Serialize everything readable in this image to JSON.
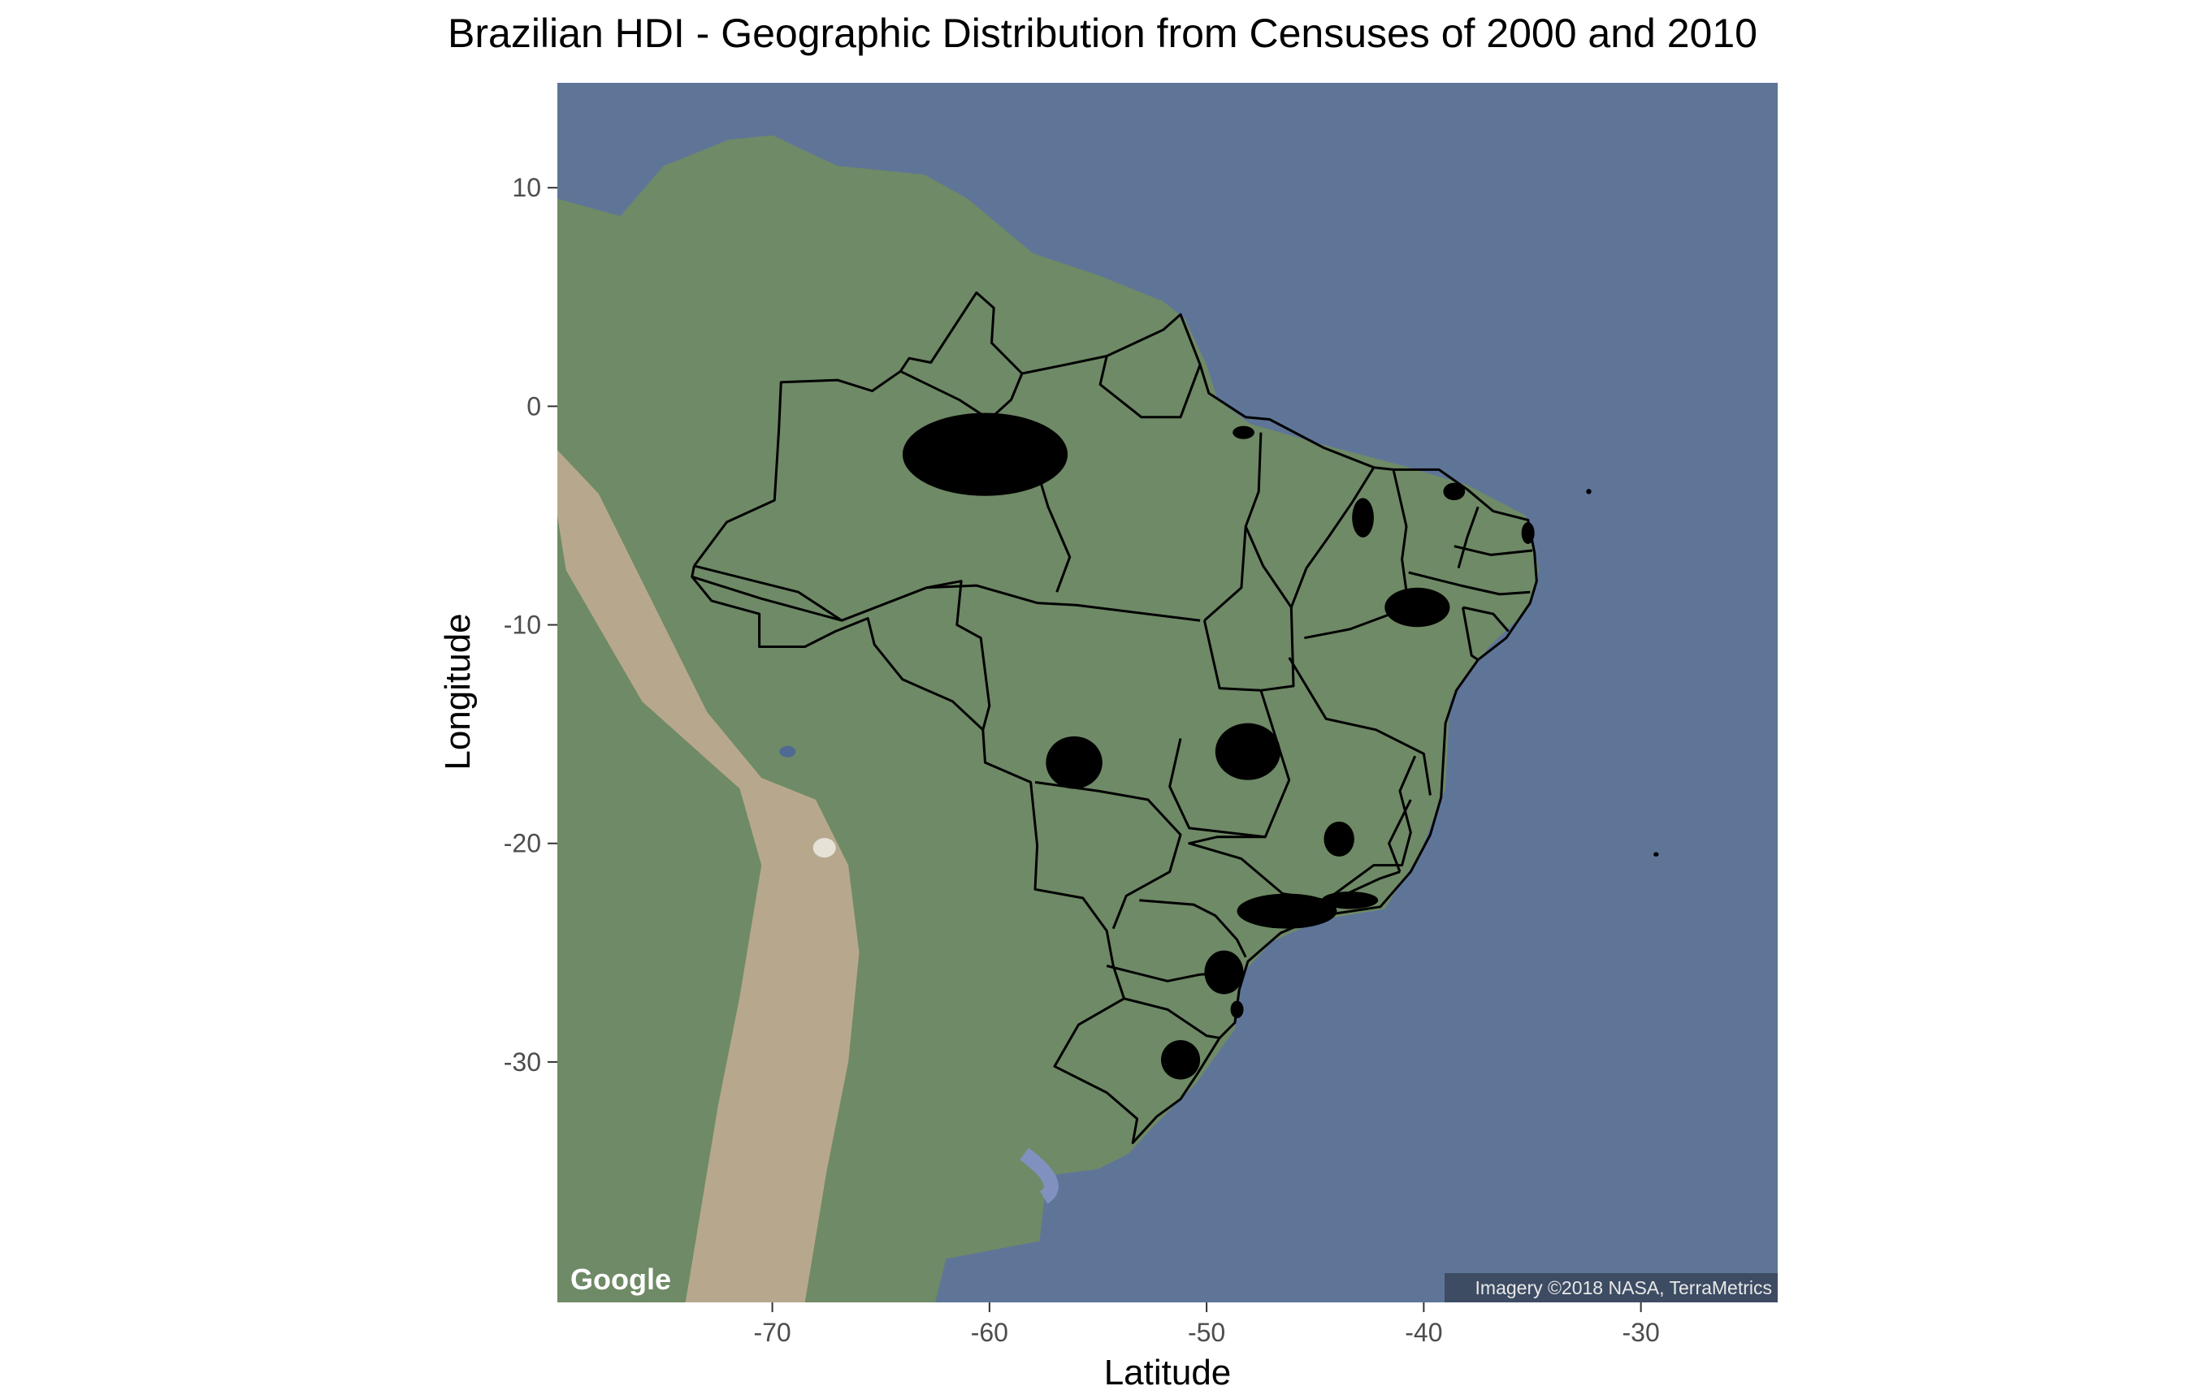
{
  "title": "Brazilian HDI - Geographic Distribution from Censuses of 2000 and 2010",
  "xlabel": "Latitude",
  "ylabel": "Longitude",
  "attribution": "Imagery ©2018 NASA, TerraMetrics",
  "logo_text": "Google",
  "chart_data": {
    "type": "map",
    "title": "Brazilian HDI - Geographic Distribution from Censuses of 2000 and 2010",
    "xlabel": "Latitude",
    "ylabel": "Longitude",
    "xlim": [
      -79.9,
      -23.7
    ],
    "ylim": [
      -41,
      14.8
    ],
    "xticks": [
      -70,
      -60,
      -50,
      -40,
      -30
    ],
    "yticks": [
      10,
      0,
      -10,
      -20,
      -30
    ],
    "grid": false,
    "basemap": "satellite",
    "colors": {
      "ocean": "#5f7598",
      "shelf": "#8091c0",
      "land": "#6f8a66",
      "andes": "#b7a88d",
      "border": "#000000",
      "hotspot": "#000000"
    },
    "state_borders": [
      {
        "name": "brazil-outline",
        "points": [
          [
            -73.6,
            -7.3
          ],
          [
            -72.1,
            -5.3
          ],
          [
            -69.9,
            -4.3
          ],
          [
            -69.7,
            -1.1
          ],
          [
            -69.6,
            1.1
          ],
          [
            -67.0,
            1.2
          ],
          [
            -65.4,
            0.7
          ],
          [
            -64.1,
            1.6
          ],
          [
            -63.7,
            2.2
          ],
          [
            -62.7,
            2.0
          ],
          [
            -60.6,
            5.2
          ],
          [
            -59.8,
            4.5
          ],
          [
            -59.9,
            2.9
          ],
          [
            -58.5,
            1.5
          ],
          [
            -56.5,
            1.9
          ],
          [
            -54.6,
            2.3
          ],
          [
            -52.0,
            3.5
          ],
          [
            -51.2,
            4.2
          ],
          [
            -50.3,
            1.9
          ],
          [
            -49.9,
            0.6
          ],
          [
            -48.2,
            -0.5
          ],
          [
            -47.1,
            -0.6
          ],
          [
            -44.6,
            -1.9
          ],
          [
            -42.3,
            -2.8
          ],
          [
            -41.4,
            -2.9
          ],
          [
            -39.3,
            -2.9
          ],
          [
            -38.0,
            -3.8
          ],
          [
            -36.8,
            -4.8
          ],
          [
            -35.2,
            -5.2
          ],
          [
            -34.9,
            -6.7
          ],
          [
            -34.8,
            -8.0
          ],
          [
            -35.1,
            -9.0
          ],
          [
            -36.2,
            -10.6
          ],
          [
            -37.5,
            -11.6
          ],
          [
            -38.5,
            -13.0
          ],
          [
            -39.0,
            -14.5
          ],
          [
            -39.2,
            -17.9
          ],
          [
            -39.7,
            -19.6
          ],
          [
            -40.6,
            -21.3
          ],
          [
            -42.0,
            -22.9
          ],
          [
            -44.7,
            -23.3
          ],
          [
            -46.6,
            -24.1
          ],
          [
            -48.1,
            -25.4
          ],
          [
            -48.5,
            -26.7
          ],
          [
            -48.7,
            -28.2
          ],
          [
            -49.4,
            -28.9
          ],
          [
            -50.4,
            -30.5
          ],
          [
            -51.2,
            -31.7
          ],
          [
            -52.3,
            -32.5
          ],
          [
            -53.4,
            -33.7
          ],
          [
            -53.2,
            -32.6
          ],
          [
            -54.6,
            -31.4
          ],
          [
            -57.0,
            -30.2
          ],
          [
            -55.9,
            -28.3
          ],
          [
            -53.8,
            -27.1
          ],
          [
            -54.3,
            -25.6
          ],
          [
            -54.6,
            -24.0
          ],
          [
            -55.7,
            -22.5
          ],
          [
            -57.9,
            -22.1
          ],
          [
            -57.8,
            -20.1
          ],
          [
            -58.1,
            -17.2
          ],
          [
            -60.2,
            -16.3
          ],
          [
            -60.3,
            -14.8
          ],
          [
            -61.7,
            -13.5
          ],
          [
            -64.0,
            -12.5
          ],
          [
            -65.3,
            -10.9
          ],
          [
            -65.6,
            -9.7
          ],
          [
            -67.1,
            -10.3
          ],
          [
            -68.5,
            -11.0
          ],
          [
            -70.6,
            -11.0
          ],
          [
            -70.6,
            -9.5
          ],
          [
            -72.8,
            -8.9
          ],
          [
            -73.7,
            -7.8
          ],
          [
            -73.6,
            -7.3
          ]
        ]
      },
      {
        "name": "amazonas-para-border",
        "points": [
          [
            -58.0,
            -2.3
          ],
          [
            -57.3,
            -4.6
          ],
          [
            -56.3,
            -6.9
          ],
          [
            -56.9,
            -8.5
          ]
        ]
      },
      {
        "name": "amazonas-roraima-border",
        "points": [
          [
            -64.1,
            1.6
          ],
          [
            -61.4,
            0.3
          ],
          [
            -60.0,
            -0.6
          ],
          [
            -59.0,
            0.3
          ],
          [
            -58.5,
            1.5
          ]
        ]
      },
      {
        "name": "amazonas-south-border",
        "points": [
          [
            -73.7,
            -7.8
          ],
          [
            -70.5,
            -8.8
          ],
          [
            -66.8,
            -9.8
          ],
          [
            -62.9,
            -8.3
          ],
          [
            -60.6,
            -8.2
          ],
          [
            -57.8,
            -9.0
          ]
        ]
      },
      {
        "name": "acre-border",
        "points": [
          [
            -73.6,
            -7.3
          ],
          [
            -68.8,
            -8.5
          ],
          [
            -66.8,
            -9.8
          ]
        ]
      },
      {
        "name": "rondonia-border",
        "points": [
          [
            -62.9,
            -8.3
          ],
          [
            -61.3,
            -8.0
          ],
          [
            -61.5,
            -10.0
          ],
          [
            -60.4,
            -10.6
          ],
          [
            -60.0,
            -13.7
          ],
          [
            -60.3,
            -14.8
          ]
        ]
      },
      {
        "name": "amapa-border",
        "points": [
          [
            -54.6,
            2.3
          ],
          [
            -54.9,
            1.0
          ],
          [
            -53.0,
            -0.5
          ],
          [
            -51.2,
            -0.5
          ],
          [
            -50.3,
            1.9
          ]
        ]
      },
      {
        "name": "para-mato-grosso-border",
        "points": [
          [
            -57.8,
            -9.0
          ],
          [
            -56.0,
            -9.1
          ],
          [
            -50.3,
            -9.8
          ]
        ]
      },
      {
        "name": "para-maranhao-border",
        "points": [
          [
            -47.5,
            -1.2
          ],
          [
            -47.6,
            -3.9
          ],
          [
            -48.2,
            -5.5
          ],
          [
            -48.4,
            -8.3
          ],
          [
            -50.1,
            -9.8
          ]
        ]
      },
      {
        "name": "tocantins-border",
        "points": [
          [
            -48.2,
            -5.5
          ],
          [
            -47.4,
            -7.3
          ],
          [
            -46.1,
            -9.2
          ],
          [
            -46.0,
            -12.8
          ],
          [
            -47.5,
            -13.0
          ],
          [
            -49.4,
            -12.9
          ],
          [
            -50.1,
            -9.8
          ]
        ]
      },
      {
        "name": "goias-border",
        "points": [
          [
            -51.2,
            -15.2
          ],
          [
            -51.7,
            -17.4
          ],
          [
            -50.8,
            -19.3
          ],
          [
            -47.3,
            -19.7
          ],
          [
            -46.2,
            -17.1
          ],
          [
            -47.5,
            -13.0
          ]
        ]
      },
      {
        "name": "mato-grosso-sul-border",
        "points": [
          [
            -57.9,
            -17.2
          ],
          [
            -55.0,
            -17.6
          ],
          [
            -52.7,
            -18.0
          ],
          [
            -51.2,
            -19.6
          ],
          [
            -51.7,
            -21.3
          ],
          [
            -53.7,
            -22.4
          ],
          [
            -54.3,
            -23.9
          ]
        ]
      },
      {
        "name": "maranhao-piaui-border",
        "points": [
          [
            -42.3,
            -2.8
          ],
          [
            -43.3,
            -4.4
          ],
          [
            -44.4,
            -6.0
          ],
          [
            -45.4,
            -7.4
          ],
          [
            -46.1,
            -9.2
          ]
        ]
      },
      {
        "name": "piaui-ceara-border",
        "points": [
          [
            -41.4,
            -2.9
          ],
          [
            -40.8,
            -5.5
          ],
          [
            -41.0,
            -7.0
          ],
          [
            -40.7,
            -9.2
          ],
          [
            -43.4,
            -10.2
          ],
          [
            -45.5,
            -10.6
          ]
        ]
      },
      {
        "name": "ceara-rn-border",
        "points": [
          [
            -37.5,
            -4.6
          ],
          [
            -38.0,
            -6.0
          ],
          [
            -38.4,
            -7.4
          ]
        ]
      },
      {
        "name": "paraiba-border",
        "points": [
          [
            -38.6,
            -6.4
          ],
          [
            -36.9,
            -6.8
          ],
          [
            -35.0,
            -6.6
          ]
        ]
      },
      {
        "name": "pernambuco-border",
        "points": [
          [
            -40.7,
            -7.6
          ],
          [
            -38.3,
            -8.2
          ],
          [
            -36.5,
            -8.6
          ],
          [
            -35.1,
            -8.5
          ]
        ]
      },
      {
        "name": "alagoas-border",
        "points": [
          [
            -38.2,
            -9.2
          ],
          [
            -36.8,
            -9.5
          ],
          [
            -36.1,
            -10.3
          ]
        ]
      },
      {
        "name": "sergipe-border",
        "points": [
          [
            -38.2,
            -9.2
          ],
          [
            -37.8,
            -11.4
          ],
          [
            -37.5,
            -11.6
          ]
        ]
      },
      {
        "name": "bahia-border",
        "points": [
          [
            -46.2,
            -11.5
          ],
          [
            -44.5,
            -14.3
          ],
          [
            -42.2,
            -14.8
          ],
          [
            -40.0,
            -15.9
          ],
          [
            -39.7,
            -17.8
          ]
        ]
      },
      {
        "name": "minas-gerais-border",
        "points": [
          [
            -47.3,
            -19.7
          ],
          [
            -49.5,
            -19.7
          ],
          [
            -50.8,
            -20.0
          ],
          [
            -48.4,
            -20.7
          ],
          [
            -46.5,
            -22.3
          ],
          [
            -44.5,
            -22.6
          ],
          [
            -42.3,
            -21.0
          ],
          [
            -41.0,
            -21.0
          ],
          [
            -40.6,
            -19.5
          ],
          [
            -41.1,
            -17.6
          ],
          [
            -40.4,
            -16.0
          ]
        ]
      },
      {
        "name": "espirito-santo-border",
        "points": [
          [
            -40.6,
            -18.0
          ],
          [
            -41.6,
            -20.0
          ],
          [
            -41.1,
            -21.3
          ]
        ]
      },
      {
        "name": "rio-janeiro-border",
        "points": [
          [
            -44.7,
            -23.3
          ],
          [
            -44.2,
            -22.6
          ],
          [
            -42.0,
            -21.6
          ],
          [
            -41.1,
            -21.3
          ]
        ]
      },
      {
        "name": "sao-paulo-border",
        "points": [
          [
            -53.1,
            -22.6
          ],
          [
            -50.6,
            -22.8
          ],
          [
            -49.6,
            -23.3
          ],
          [
            -48.6,
            -24.4
          ],
          [
            -48.2,
            -25.2
          ]
        ]
      },
      {
        "name": "parana-border",
        "points": [
          [
            -54.6,
            -25.6
          ],
          [
            -51.8,
            -26.3
          ],
          [
            -50.3,
            -26.0
          ],
          [
            -48.6,
            -25.9
          ]
        ]
      },
      {
        "name": "santa-catarina-border",
        "points": [
          [
            -53.8,
            -27.1
          ],
          [
            -51.8,
            -27.6
          ],
          [
            -50.0,
            -28.8
          ],
          [
            -49.4,
            -28.9
          ]
        ]
      }
    ],
    "hotspots": [
      {
        "name": "manaus",
        "cx": -60.2,
        "cy": -2.2,
        "rx": 3.8,
        "ry": 1.9
      },
      {
        "name": "belem",
        "cx": -48.3,
        "cy": -1.2,
        "rx": 0.5,
        "ry": 0.3
      },
      {
        "name": "natal",
        "cx": -35.2,
        "cy": -5.8,
        "rx": 0.3,
        "ry": 0.5
      },
      {
        "name": "fortaleza",
        "cx": -38.6,
        "cy": -3.9,
        "rx": 0.5,
        "ry": 0.4
      },
      {
        "name": "teresina",
        "cx": -42.8,
        "cy": -5.1,
        "rx": 0.5,
        "ry": 0.9
      },
      {
        "name": "petrolina",
        "cx": -40.3,
        "cy": -9.2,
        "rx": 1.5,
        "ry": 0.9
      },
      {
        "name": "cuiaba",
        "cx": -56.1,
        "cy": -16.3,
        "rx": 1.3,
        "ry": 1.2
      },
      {
        "name": "brasilia",
        "cx": -48.1,
        "cy": -15.8,
        "rx": 1.5,
        "ry": 1.3
      },
      {
        "name": "belo-horizonte",
        "cx": -43.9,
        "cy": -19.8,
        "rx": 0.7,
        "ry": 0.8
      },
      {
        "name": "sao-paulo",
        "cx": -46.3,
        "cy": -23.1,
        "rx": 2.3,
        "ry": 0.8
      },
      {
        "name": "rio-de-janeiro",
        "cx": -43.4,
        "cy": -22.6,
        "rx": 1.3,
        "ry": 0.4
      },
      {
        "name": "curitiba",
        "cx": -49.2,
        "cy": -25.9,
        "rx": 0.9,
        "ry": 1.0
      },
      {
        "name": "florianopolis",
        "cx": -48.6,
        "cy": -27.6,
        "rx": 0.3,
        "ry": 0.4
      },
      {
        "name": "porto-alegre",
        "cx": -51.2,
        "cy": -29.9,
        "rx": 0.9,
        "ry": 0.9
      },
      {
        "name": "fernando-de-noronha",
        "cx": -32.4,
        "cy": -3.9,
        "rx": 0.12,
        "ry": 0.12
      },
      {
        "name": "trindade",
        "cx": -29.3,
        "cy": -20.5,
        "rx": 0.12,
        "ry": 0.1
      }
    ]
  }
}
